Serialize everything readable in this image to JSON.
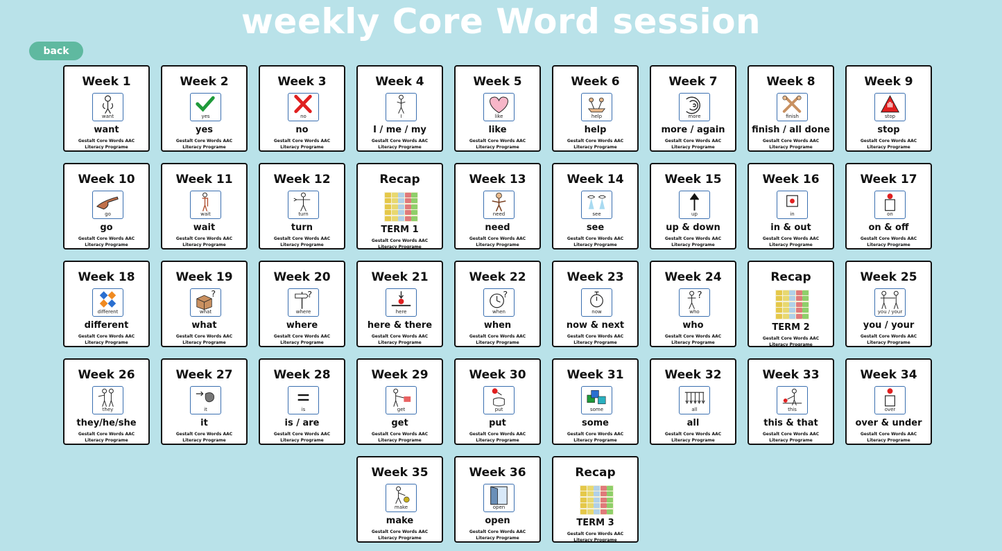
{
  "page": {
    "title": "weekly Core Word session",
    "back_label": "back",
    "subtitle": "Gestalt Core Words AAC Literacy Programe"
  },
  "cards": [
    {
      "title": "Week 1",
      "symbol": "want",
      "word": "want",
      "icon": "want-icon"
    },
    {
      "title": "Week 2",
      "symbol": "yes",
      "word": "yes",
      "icon": "checkmark-icon"
    },
    {
      "title": "Week 3",
      "symbol": "no",
      "word": "no",
      "icon": "cross-icon"
    },
    {
      "title": "Week 4",
      "symbol": "I",
      "word": "I / me / my",
      "icon": "person-icon"
    },
    {
      "title": "Week 5",
      "symbol": "like",
      "word": "like",
      "icon": "heart-icon"
    },
    {
      "title": "Week 6",
      "symbol": "help",
      "word": "help",
      "icon": "help-icon"
    },
    {
      "title": "Week 7",
      "symbol": "more",
      "word": "more / again",
      "icon": "more-icon"
    },
    {
      "title": "Week 8",
      "symbol": "finish",
      "word": "finish / all done",
      "icon": "finish-icon"
    },
    {
      "title": "Week 9",
      "symbol": "stop",
      "word": "stop",
      "icon": "stop-sign-icon"
    },
    {
      "title": "Week 10",
      "symbol": "go",
      "word": "go",
      "icon": "pointing-hand-icon"
    },
    {
      "title": "Week 11",
      "symbol": "wait",
      "word": "wait",
      "icon": "wait-icon"
    },
    {
      "title": "Week 12",
      "symbol": "turn",
      "word": "turn",
      "icon": "turn-icon"
    },
    {
      "title": "Recap",
      "symbol": "",
      "word": "TERM 1",
      "icon": "recap-grid-icon",
      "recap": true
    },
    {
      "title": "Week 13",
      "symbol": "need",
      "word": "need",
      "icon": "need-icon"
    },
    {
      "title": "Week 14",
      "symbol": "see",
      "word": "see",
      "icon": "eyes-icon"
    },
    {
      "title": "Week 15",
      "symbol": "up",
      "word": "up & down",
      "icon": "arrow-up-icon"
    },
    {
      "title": "Week 16",
      "symbol": "in",
      "word": "in & out",
      "icon": "in-icon"
    },
    {
      "title": "Week 17",
      "symbol": "on",
      "word": "on & off",
      "icon": "on-icon"
    },
    {
      "title": "Week 18",
      "symbol": "different",
      "word": "different",
      "icon": "different-icon"
    },
    {
      "title": "Week 19",
      "symbol": "what",
      "word": "what",
      "icon": "box-question-icon"
    },
    {
      "title": "Week 20",
      "symbol": "where",
      "word": "where",
      "icon": "signpost-icon"
    },
    {
      "title": "Week 21",
      "symbol": "here",
      "word": "here & there",
      "icon": "here-icon"
    },
    {
      "title": "Week 22",
      "symbol": "when",
      "word": "when",
      "icon": "clock-question-icon"
    },
    {
      "title": "Week 23",
      "symbol": "now",
      "word": "now & next",
      "icon": "stopwatch-icon"
    },
    {
      "title": "Week 24",
      "symbol": "who",
      "word": "who",
      "icon": "person-question-icon"
    },
    {
      "title": "Recap",
      "symbol": "",
      "word": "TERM 2",
      "icon": "recap-grid-icon",
      "recap": true
    },
    {
      "title": "Week 25",
      "symbol": "you / your",
      "word": "you / your",
      "icon": "you-icon"
    },
    {
      "title": "Week 26",
      "symbol": "they",
      "word": "they/he/she",
      "icon": "people-icon"
    },
    {
      "title": "Week 27",
      "symbol": "it",
      "word": "it",
      "icon": "it-icon"
    },
    {
      "title": "Week 28",
      "symbol": "is",
      "word": "is / are",
      "icon": "equals-icon"
    },
    {
      "title": "Week 29",
      "symbol": "get",
      "word": "get",
      "icon": "get-icon"
    },
    {
      "title": "Week 30",
      "symbol": "put",
      "word": "put",
      "icon": "put-icon"
    },
    {
      "title": "Week 31",
      "symbol": "some",
      "word": "some",
      "icon": "blocks-icon"
    },
    {
      "title": "Week 32",
      "symbol": "all",
      "word": "all",
      "icon": "all-icon"
    },
    {
      "title": "Week 33",
      "symbol": "this",
      "word": "this & that",
      "icon": "this-icon"
    },
    {
      "title": "Week 34",
      "symbol": "over",
      "word": "over & under",
      "icon": "over-icon"
    },
    {
      "title": "Week 35",
      "symbol": "make",
      "word": "make",
      "icon": "make-icon"
    },
    {
      "title": "Week 36",
      "symbol": "open",
      "word": "open",
      "icon": "door-icon"
    },
    {
      "title": "Recap",
      "symbol": "",
      "word": "TERM 3",
      "icon": "recap-grid-icon",
      "recap": true
    }
  ]
}
